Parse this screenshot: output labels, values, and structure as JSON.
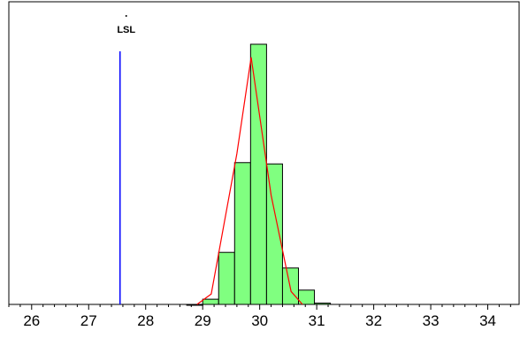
{
  "chart_data": {
    "type": "bar",
    "title": "",
    "xlabel": "",
    "ylabel": "",
    "xlim": [
      25.6,
      34.55
    ],
    "ylim": [
      0,
      1.0
    ],
    "grid": false,
    "x_ticks": [
      26,
      27,
      28,
      29,
      30,
      31,
      32,
      33,
      34
    ],
    "x_tick_labels": [
      "26",
      "27",
      "28",
      "29",
      "30",
      "31",
      "32",
      "33",
      "34"
    ],
    "bin_width": 0.28,
    "bars": [
      {
        "x_start": 28.72,
        "value": 0.0
      },
      {
        "x_start": 29.0,
        "value": 0.02
      },
      {
        "x_start": 29.28,
        "value": 0.2
      },
      {
        "x_start": 29.56,
        "value": 0.545
      },
      {
        "x_start": 29.84,
        "value": 1.0
      },
      {
        "x_start": 30.12,
        "value": 0.54
      },
      {
        "x_start": 30.4,
        "value": 0.14
      },
      {
        "x_start": 30.68,
        "value": 0.055
      },
      {
        "x_start": 30.96,
        "value": 0.005
      }
    ],
    "fit_curve": {
      "color": "#ff0000",
      "points": [
        {
          "x": 28.9,
          "y": 0.0
        },
        {
          "x": 29.15,
          "y": 0.04
        },
        {
          "x": 29.6,
          "y": 0.58
        },
        {
          "x": 29.85,
          "y": 0.95
        },
        {
          "x": 30.2,
          "y": 0.42
        },
        {
          "x": 30.55,
          "y": 0.05
        },
        {
          "x": 30.75,
          "y": 0.0
        }
      ]
    },
    "spec_limits": [
      {
        "label": "LSL",
        "x": 27.55,
        "color": "#0000ff"
      }
    ],
    "colors": {
      "bar_fill": "#80ff80",
      "bar_stroke": "#000000",
      "axis": "#000000",
      "background": "#ffffff"
    }
  }
}
